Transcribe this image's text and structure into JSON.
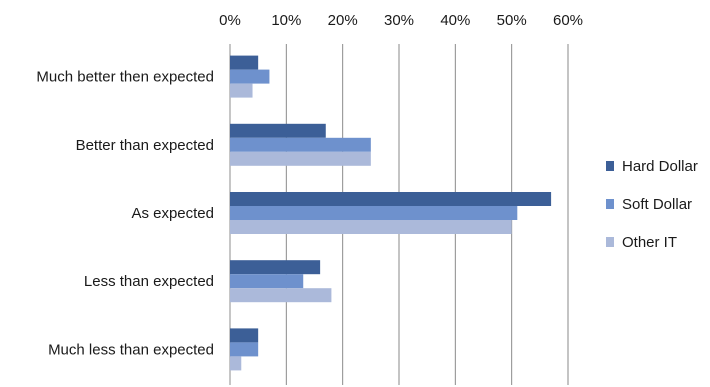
{
  "chart_data": {
    "type": "bar",
    "orientation": "horizontal",
    "categories": [
      "Much better then expected",
      "Better than expected",
      "As expected",
      "Less than expected",
      "Much less than expected"
    ],
    "series": [
      {
        "name": "Hard Dollar",
        "color": "#3c5f97",
        "values": [
          5,
          17,
          57,
          16,
          5
        ]
      },
      {
        "name": "Soft Dollar",
        "color": "#6e91cd",
        "values": [
          7,
          25,
          51,
          13,
          5
        ]
      },
      {
        "name": "Other IT",
        "color": "#abb9da",
        "values": [
          4,
          25,
          50,
          18,
          2
        ]
      }
    ],
    "xlim": [
      0,
      60
    ],
    "xticks": [
      "0%",
      "10%",
      "20%",
      "30%",
      "40%",
      "50%",
      "60%"
    ],
    "title": "",
    "xlabel": "",
    "ylabel": "",
    "grid": true,
    "legend": "right"
  }
}
